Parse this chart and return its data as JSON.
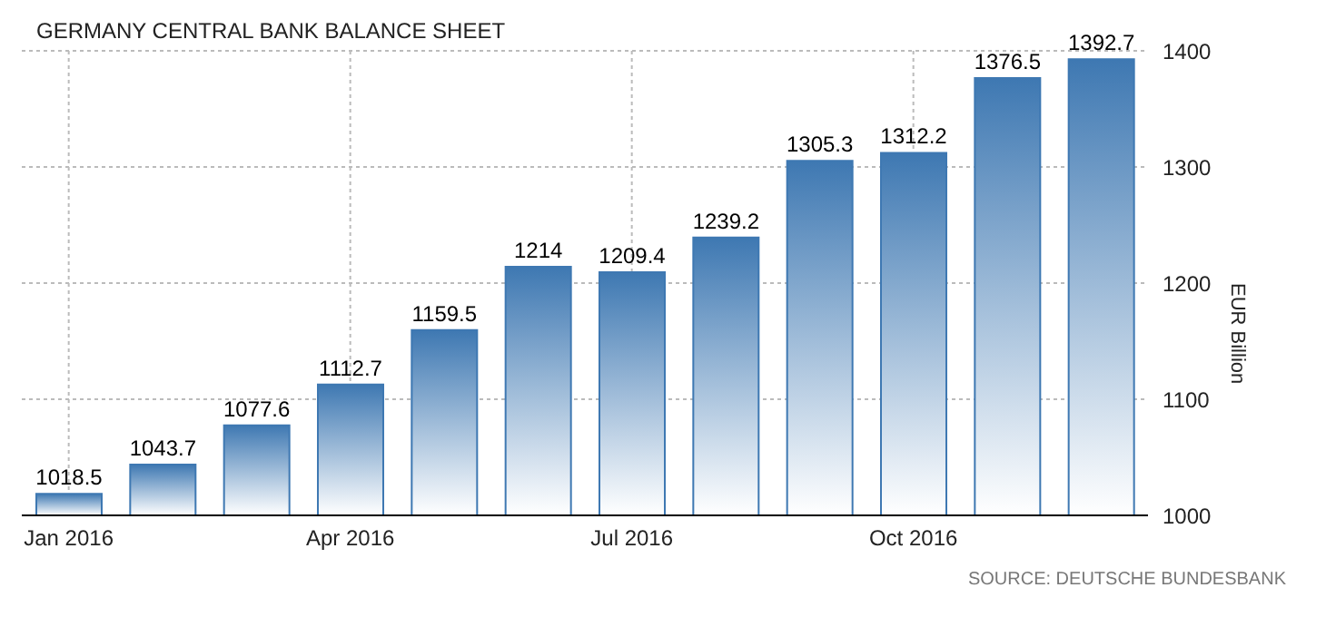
{
  "chart_data": {
    "type": "bar",
    "title": "GERMANY CENTRAL BANK BALANCE SHEET",
    "ylabel": "EUR Billion",
    "categories": [
      "Jan 2016",
      null,
      null,
      "Apr 2016",
      null,
      null,
      "Jul 2016",
      null,
      null,
      "Oct 2016",
      null,
      null
    ],
    "values": [
      1018.5,
      1043.7,
      1077.6,
      1112.7,
      1159.5,
      1214,
      1209.4,
      1239.2,
      1305.3,
      1312.2,
      1376.5,
      1392.7
    ],
    "color": "#3e78b2",
    "ylim": [
      1000,
      1400
    ],
    "yticks": [
      1000,
      1100,
      1200,
      1300,
      1400
    ],
    "grid": true,
    "data_labels": true,
    "annotations": [
      "SOURCE: DEUTSCHE BUNDESBANK"
    ]
  }
}
